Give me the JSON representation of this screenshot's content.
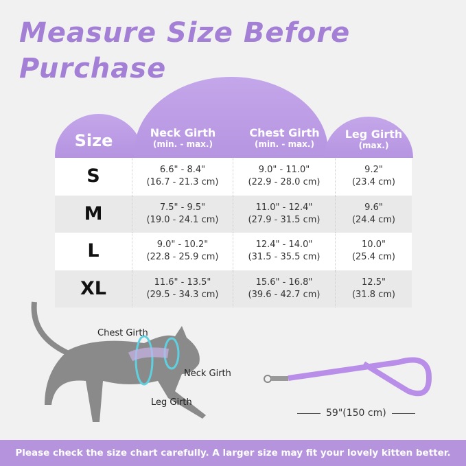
{
  "title": "Measure Size Before Purchase",
  "headers": {
    "size": "Size",
    "neck": "Neck Girth",
    "neck_sub": "(min. - max.)",
    "chest": "Chest Girth",
    "chest_sub": "(min. - max.)",
    "leg": "Leg Girth",
    "leg_sub": "(max.)"
  },
  "rows": [
    {
      "size": "S",
      "neck_in": "6.6\" - 8.4\"",
      "neck_cm": "(16.7 - 21.3 cm)",
      "chest_in": "9.0\" - 11.0\"",
      "chest_cm": "(22.9 - 28.0 cm)",
      "leg_in": "9.2\"",
      "leg_cm": "(23.4 cm)"
    },
    {
      "size": "M",
      "neck_in": "7.5\" - 9.5\"",
      "neck_cm": "(19.0 - 24.1 cm)",
      "chest_in": "11.0\" - 12.4\"",
      "chest_cm": "(27.9 - 31.5 cm)",
      "leg_in": "9.6\"",
      "leg_cm": "(24.4 cm)"
    },
    {
      "size": "L",
      "neck_in": "9.0\" - 10.2\"",
      "neck_cm": "(22.8 - 25.9 cm)",
      "chest_in": "12.4\" - 14.0\"",
      "chest_cm": "(31.5 - 35.5 cm)",
      "leg_in": "10.0\"",
      "leg_cm": "(25.4 cm)"
    },
    {
      "size": "XL",
      "neck_in": "11.6\" - 13.5\"",
      "neck_cm": "(29.5 - 34.3 cm)",
      "chest_in": "15.6\" - 16.8\"",
      "chest_cm": "(39.6 - 42.7 cm)",
      "leg_in": "12.5\"",
      "leg_cm": "(31.8 cm)"
    }
  ],
  "diagram": {
    "chest": "Chest Girth",
    "neck": "Neck Girth",
    "leg": "Leg Girth"
  },
  "leash_length": "59\"(150 cm)",
  "banner": "Please check the size chart carefully. A larger size may fit your lovely kitten better.",
  "colors": {
    "accent": "#a47fd6",
    "banner": "#b594dd",
    "cat": "#8a8a8a",
    "harness": "#5fd0e0"
  }
}
